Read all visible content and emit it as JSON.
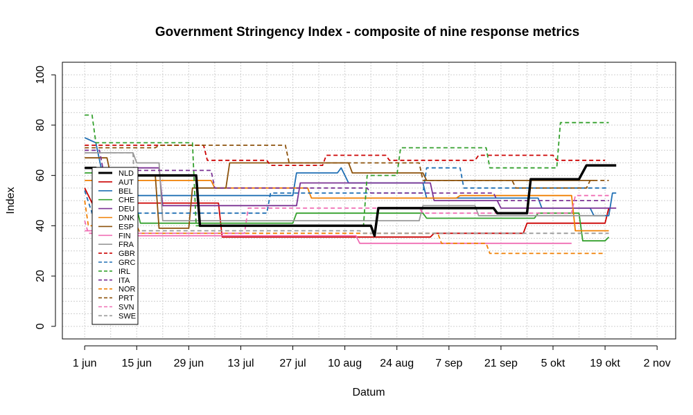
{
  "chart_data": {
    "type": "line",
    "title": "Government Stringency Index - composite of nine response metrics",
    "xlabel": "Datum",
    "ylabel": "Index",
    "x_range": [
      "2020-05-26",
      "2020-11-07"
    ],
    "ylim": [
      -5,
      105
    ],
    "y_ticks": [
      0,
      20,
      40,
      60,
      80,
      100
    ],
    "x_ticks": [
      {
        "date": "2020-06-01",
        "label": "1 jun"
      },
      {
        "date": "2020-06-15",
        "label": "15 jun"
      },
      {
        "date": "2020-06-29",
        "label": "29 jun"
      },
      {
        "date": "2020-07-13",
        "label": "13 jul"
      },
      {
        "date": "2020-07-27",
        "label": "27 jul"
      },
      {
        "date": "2020-08-10",
        "label": "10 aug"
      },
      {
        "date": "2020-08-24",
        "label": "24 aug"
      },
      {
        "date": "2020-09-07",
        "label": "7 sep"
      },
      {
        "date": "2020-09-21",
        "label": "21 sep"
      },
      {
        "date": "2020-10-05",
        "label": "5 okt"
      },
      {
        "date": "2020-10-19",
        "label": "19 okt"
      },
      {
        "date": "2020-11-02",
        "label": "2 nov"
      }
    ],
    "grid": true,
    "legend_position": "bottom-left",
    "series": [
      {
        "name": "NLD",
        "color": "#000000",
        "dash": "solid",
        "bold": true,
        "points": [
          [
            "2020-06-01",
            63
          ],
          [
            "2020-06-04",
            63
          ],
          [
            "2020-06-05",
            60
          ],
          [
            "2020-07-01",
            60
          ],
          [
            "2020-07-02",
            40
          ],
          [
            "2020-08-17",
            40
          ],
          [
            "2020-08-18",
            36
          ],
          [
            "2020-08-19",
            47
          ],
          [
            "2020-09-19",
            47
          ],
          [
            "2020-09-20",
            45
          ],
          [
            "2020-09-28",
            45
          ],
          [
            "2020-09-29",
            58.5
          ],
          [
            "2020-10-12",
            58.5
          ],
          [
            "2020-10-14",
            64
          ],
          [
            "2020-10-22",
            64
          ]
        ]
      },
      {
        "name": "AUT",
        "color": "#cc0000",
        "dash": "solid",
        "bold": false,
        "points": [
          [
            "2020-06-01",
            55
          ],
          [
            "2020-06-03",
            49
          ],
          [
            "2020-07-07",
            49
          ],
          [
            "2020-07-08",
            35.5
          ],
          [
            "2020-09-02",
            35.5
          ],
          [
            "2020-09-03",
            37
          ],
          [
            "2020-09-27",
            37
          ],
          [
            "2020-09-28",
            41
          ],
          [
            "2020-10-19",
            41
          ],
          [
            "2020-10-20",
            47
          ]
        ]
      },
      {
        "name": "BEL",
        "color": "#1f6fb4",
        "dash": "solid",
        "bold": false,
        "points": [
          [
            "2020-06-01",
            75
          ],
          [
            "2020-06-04",
            73
          ],
          [
            "2020-06-07",
            52
          ],
          [
            "2020-07-27",
            52
          ],
          [
            "2020-07-28",
            61
          ],
          [
            "2020-08-08",
            61
          ],
          [
            "2020-08-09",
            63
          ],
          [
            "2020-08-11",
            57
          ],
          [
            "2020-08-31",
            57
          ],
          [
            "2020-09-01",
            51
          ],
          [
            "2020-10-01",
            51
          ],
          [
            "2020-10-02",
            47
          ],
          [
            "2020-10-15",
            47
          ],
          [
            "2020-10-16",
            44
          ],
          [
            "2020-10-20",
            44
          ],
          [
            "2020-10-21",
            53
          ],
          [
            "2020-10-22",
            53
          ]
        ]
      },
      {
        "name": "CHE",
        "color": "#33a02c",
        "dash": "solid",
        "bold": false,
        "points": [
          [
            "2020-06-01",
            61
          ],
          [
            "2020-06-06",
            61
          ],
          [
            "2020-06-07",
            47
          ],
          [
            "2020-06-15",
            47
          ],
          [
            "2020-06-16",
            41
          ],
          [
            "2020-07-27",
            41
          ],
          [
            "2020-07-28",
            45
          ],
          [
            "2020-08-31",
            45
          ],
          [
            "2020-09-01",
            43
          ],
          [
            "2020-09-30",
            43
          ],
          [
            "2020-10-01",
            45
          ],
          [
            "2020-10-12",
            45
          ],
          [
            "2020-10-13",
            34
          ],
          [
            "2020-10-19",
            34
          ],
          [
            "2020-10-20",
            35.5
          ]
        ]
      },
      {
        "name": "DEU",
        "color": "#7b3294",
        "dash": "solid",
        "bold": false,
        "points": [
          [
            "2020-06-01",
            63
          ],
          [
            "2020-06-21",
            63
          ],
          [
            "2020-06-22",
            48
          ],
          [
            "2020-07-28",
            48
          ],
          [
            "2020-07-29",
            57
          ],
          [
            "2020-09-02",
            57
          ],
          [
            "2020-09-03",
            50
          ],
          [
            "2020-09-20",
            50
          ],
          [
            "2020-09-21",
            47
          ],
          [
            "2020-10-22",
            47
          ]
        ]
      },
      {
        "name": "DNK",
        "color": "#f07f00",
        "dash": "solid",
        "bold": false,
        "points": [
          [
            "2020-06-01",
            58
          ],
          [
            "2020-07-05",
            58
          ],
          [
            "2020-07-06",
            55
          ],
          [
            "2020-07-31",
            55
          ],
          [
            "2020-08-01",
            51
          ],
          [
            "2020-09-09",
            51
          ],
          [
            "2020-09-10",
            52
          ],
          [
            "2020-10-10",
            52
          ],
          [
            "2020-10-11",
            38
          ],
          [
            "2020-10-20",
            38
          ]
        ]
      },
      {
        "name": "ESP",
        "color": "#8c510a",
        "dash": "solid",
        "bold": false,
        "points": [
          [
            "2020-06-01",
            67
          ],
          [
            "2020-06-07",
            67
          ],
          [
            "2020-06-08",
            60
          ],
          [
            "2020-06-20",
            60
          ],
          [
            "2020-06-21",
            39
          ],
          [
            "2020-06-29",
            39
          ],
          [
            "2020-06-30",
            55
          ],
          [
            "2020-07-09",
            55
          ],
          [
            "2020-07-10",
            65
          ],
          [
            "2020-08-11",
            65
          ],
          [
            "2020-08-12",
            61
          ],
          [
            "2020-08-31",
            61
          ],
          [
            "2020-09-01",
            58
          ],
          [
            "2020-10-16",
            58
          ]
        ]
      },
      {
        "name": "FIN",
        "color": "#f06eb4",
        "dash": "solid",
        "bold": false,
        "points": [
          [
            "2020-06-01",
            38
          ],
          [
            "2020-06-04",
            38
          ],
          [
            "2020-06-05",
            36
          ],
          [
            "2020-08-13",
            36
          ],
          [
            "2020-08-14",
            33
          ],
          [
            "2020-10-10",
            33
          ]
        ]
      },
      {
        "name": "FRA",
        "color": "#999999",
        "dash": "solid",
        "bold": false,
        "points": [
          [
            "2020-06-01",
            69
          ],
          [
            "2020-06-14",
            69
          ],
          [
            "2020-06-15",
            65
          ],
          [
            "2020-06-21",
            65
          ],
          [
            "2020-06-22",
            42
          ],
          [
            "2020-08-30",
            42
          ],
          [
            "2020-08-31",
            48
          ],
          [
            "2020-09-14",
            48
          ],
          [
            "2020-09-15",
            44
          ],
          [
            "2020-10-19",
            44
          ]
        ]
      },
      {
        "name": "GBR",
        "color": "#cc0000",
        "dash": "dashed",
        "bold": false,
        "points": [
          [
            "2020-06-01",
            72
          ],
          [
            "2020-07-03",
            72
          ],
          [
            "2020-07-04",
            66
          ],
          [
            "2020-07-20",
            66
          ],
          [
            "2020-07-21",
            64
          ],
          [
            "2020-08-04",
            64
          ],
          [
            "2020-08-05",
            68
          ],
          [
            "2020-08-21",
            68
          ],
          [
            "2020-08-22",
            66
          ],
          [
            "2020-09-14",
            66
          ],
          [
            "2020-09-15",
            68
          ],
          [
            "2020-10-05",
            68
          ],
          [
            "2020-10-06",
            66
          ],
          [
            "2020-10-19",
            66
          ]
        ]
      },
      {
        "name": "GRC",
        "color": "#1f6fb4",
        "dash": "dashed",
        "bold": false,
        "points": [
          [
            "2020-06-01",
            54
          ],
          [
            "2020-06-03",
            45
          ],
          [
            "2020-07-20",
            45
          ],
          [
            "2020-07-21",
            53
          ],
          [
            "2020-08-31",
            53
          ],
          [
            "2020-09-01",
            63
          ],
          [
            "2020-09-10",
            63
          ],
          [
            "2020-09-11",
            55
          ],
          [
            "2020-10-20",
            55
          ]
        ]
      },
      {
        "name": "IRL",
        "color": "#33a02c",
        "dash": "dashed",
        "bold": false,
        "points": [
          [
            "2020-06-01",
            84
          ],
          [
            "2020-06-03",
            84
          ],
          [
            "2020-06-04",
            73
          ],
          [
            "2020-06-30",
            73
          ],
          [
            "2020-07-01",
            40
          ],
          [
            "2020-08-15",
            40
          ],
          [
            "2020-08-16",
            60
          ],
          [
            "2020-08-24",
            60
          ],
          [
            "2020-08-25",
            71
          ],
          [
            "2020-09-17",
            71
          ],
          [
            "2020-09-18",
            63
          ],
          [
            "2020-10-06",
            63
          ],
          [
            "2020-10-07",
            81
          ],
          [
            "2020-10-20",
            81
          ]
        ]
      },
      {
        "name": "ITA",
        "color": "#7b3294",
        "dash": "dashed",
        "bold": false,
        "points": [
          [
            "2020-06-01",
            70
          ],
          [
            "2020-06-05",
            70
          ],
          [
            "2020-06-06",
            62
          ],
          [
            "2020-07-05",
            62
          ],
          [
            "2020-07-06",
            55
          ],
          [
            "2020-08-16",
            55
          ],
          [
            "2020-08-17",
            53
          ],
          [
            "2020-09-19",
            53
          ],
          [
            "2020-09-20",
            50
          ],
          [
            "2020-10-20",
            50
          ]
        ]
      },
      {
        "name": "NOR",
        "color": "#f07f00",
        "dash": "dashed",
        "bold": false,
        "points": [
          [
            "2020-06-01",
            50
          ],
          [
            "2020-06-02",
            40
          ],
          [
            "2020-06-15",
            40
          ],
          [
            "2020-06-16",
            37
          ],
          [
            "2020-09-04",
            37
          ],
          [
            "2020-09-05",
            33
          ],
          [
            "2020-09-17",
            33
          ],
          [
            "2020-09-18",
            29
          ],
          [
            "2020-10-19",
            29
          ]
        ]
      },
      {
        "name": "PRT",
        "color": "#8c510a",
        "dash": "dashed",
        "bold": false,
        "points": [
          [
            "2020-06-01",
            71
          ],
          [
            "2020-06-20",
            71
          ],
          [
            "2020-06-21",
            72
          ],
          [
            "2020-07-25",
            72
          ],
          [
            "2020-07-26",
            65
          ],
          [
            "2020-08-30",
            65
          ],
          [
            "2020-08-31",
            58
          ],
          [
            "2020-09-24",
            58
          ],
          [
            "2020-09-25",
            55
          ],
          [
            "2020-10-14",
            55
          ],
          [
            "2020-10-15",
            58
          ],
          [
            "2020-10-20",
            58
          ]
        ]
      },
      {
        "name": "SVN",
        "color": "#f06eb4",
        "dash": "dashed",
        "bold": false,
        "points": [
          [
            "2020-06-01",
            42
          ],
          [
            "2020-06-02",
            37
          ],
          [
            "2020-07-14",
            37
          ],
          [
            "2020-07-15",
            47
          ],
          [
            "2020-08-30",
            47
          ],
          [
            "2020-08-31",
            45
          ],
          [
            "2020-10-10",
            45
          ],
          [
            "2020-10-11",
            52
          ],
          [
            "2020-10-20",
            52
          ]
        ]
      },
      {
        "name": "SWE",
        "color": "#999999",
        "dash": "dashed",
        "bold": false,
        "points": [
          [
            "2020-06-01",
            69
          ],
          [
            "2020-06-14",
            69
          ],
          [
            "2020-06-15",
            38
          ],
          [
            "2020-08-14",
            38
          ],
          [
            "2020-08-15",
            37
          ],
          [
            "2020-10-20",
            37
          ]
        ]
      }
    ]
  }
}
